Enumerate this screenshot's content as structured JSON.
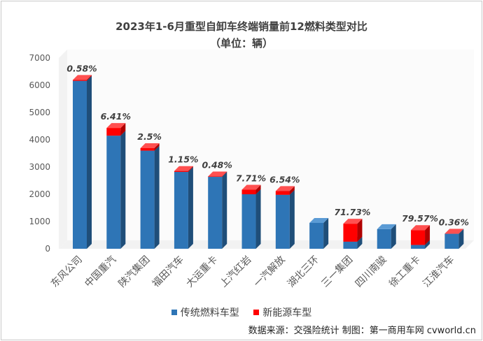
{
  "title": "2023年1-6月重型自卸车终端销量前12燃料类型对比",
  "subtitle": "（单位：辆）",
  "source": "数据来源：交强险统计  制图：第一商用车网 cvworld.cn",
  "colors": {
    "traditional": "#2e75b6",
    "traditional_side": "#1f4e79",
    "traditional_top": "#5b9bd5",
    "nev": "#ff0000",
    "nev_side": "#b00000",
    "nev_top": "#ff5050",
    "wall": "#f2f2f2"
  },
  "chart_data": {
    "type": "bar",
    "stacked": true,
    "three_d": true,
    "categories": [
      "东风公司",
      "中国重汽",
      "陕汽集团",
      "福田汽车",
      "大运重卡",
      "上汽红岩",
      "一汽解放",
      "湖北三环",
      "三一集团",
      "四川南骏",
      "徐工重卡",
      "江淮汽车"
    ],
    "series": [
      {
        "name": "传统燃料车型",
        "values": [
          6160,
          4150,
          3600,
          2820,
          2640,
          2000,
          1980,
          950,
          260,
          720,
          140,
          550
        ]
      },
      {
        "name": "新能源车型",
        "values": [
          36,
          284,
          92,
          33,
          13,
          167,
          139,
          0,
          660,
          0,
          546,
          2
        ]
      }
    ],
    "data_labels": [
      "0.58%",
      "6.41%",
      "2.5%",
      "1.15%",
      "0.48%",
      "7.71%",
      "6.54%",
      "",
      "71.73%",
      "",
      "79.57%",
      "0.36%"
    ],
    "yticks": [
      0,
      1000,
      2000,
      3000,
      4000,
      5000,
      6000,
      7000
    ],
    "ylim": [
      0,
      7000
    ],
    "legend": [
      "传统燃料车型",
      "新能源车型"
    ],
    "legend_position": "bottom",
    "grid": false
  }
}
